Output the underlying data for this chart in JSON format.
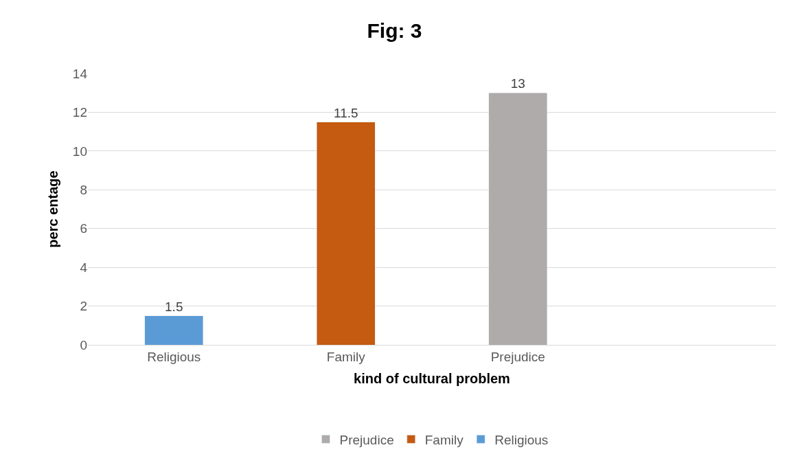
{
  "chart_data": {
    "type": "bar",
    "title": "Fig: 3",
    "xlabel": "kind of cultural problem",
    "ylabel": "perc entage",
    "categories": [
      "Religious",
      "Family",
      "Prejudice",
      null
    ],
    "series": [
      {
        "name": "Religious",
        "color": "#5b9bd5",
        "values": [
          1.5,
          null,
          null,
          null
        ]
      },
      {
        "name": "Family",
        "color": "#c55a11",
        "values": [
          null,
          11.5,
          null,
          null
        ]
      },
      {
        "name": "Prejudice",
        "color": "#afabab",
        "values": [
          null,
          null,
          13,
          null
        ]
      }
    ],
    "stacked": true,
    "ylim": [
      0,
      14
    ],
    "yticks": [
      0,
      2,
      4,
      6,
      8,
      10,
      12,
      14
    ],
    "grid": "y",
    "legend": "bottom",
    "data_labels": true
  }
}
